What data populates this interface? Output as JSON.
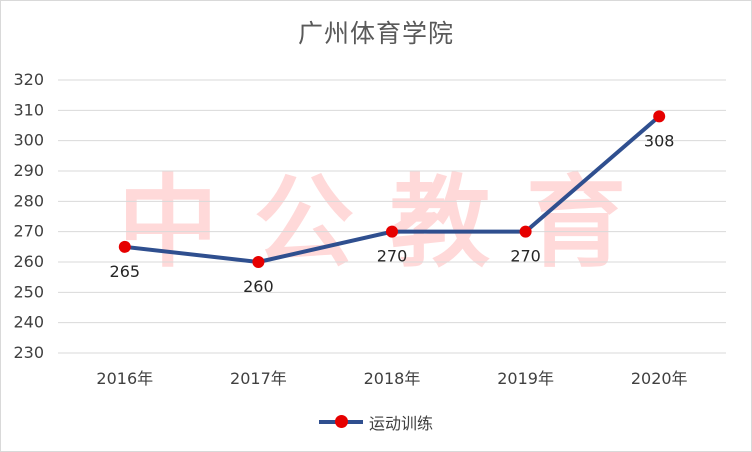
{
  "chart_data": {
    "type": "line",
    "title": "广州体育学院",
    "watermark": "中公教育",
    "categories": [
      "2016年",
      "2017年",
      "2018年",
      "2019年",
      "2020年"
    ],
    "series": [
      {
        "name": "运动训练",
        "values": [
          265,
          260,
          270,
          270,
          308
        ]
      }
    ],
    "data_labels": [
      "265",
      "260",
      "270",
      "270",
      "308"
    ],
    "ylim": [
      230,
      320
    ],
    "yticks": [
      230,
      240,
      250,
      260,
      270,
      280,
      290,
      300,
      310,
      320
    ],
    "grid": true,
    "legend": "bottom",
    "colors": {
      "line": "#2f4f8f",
      "marker": "#e60000",
      "grid": "#d9d9d9"
    }
  }
}
